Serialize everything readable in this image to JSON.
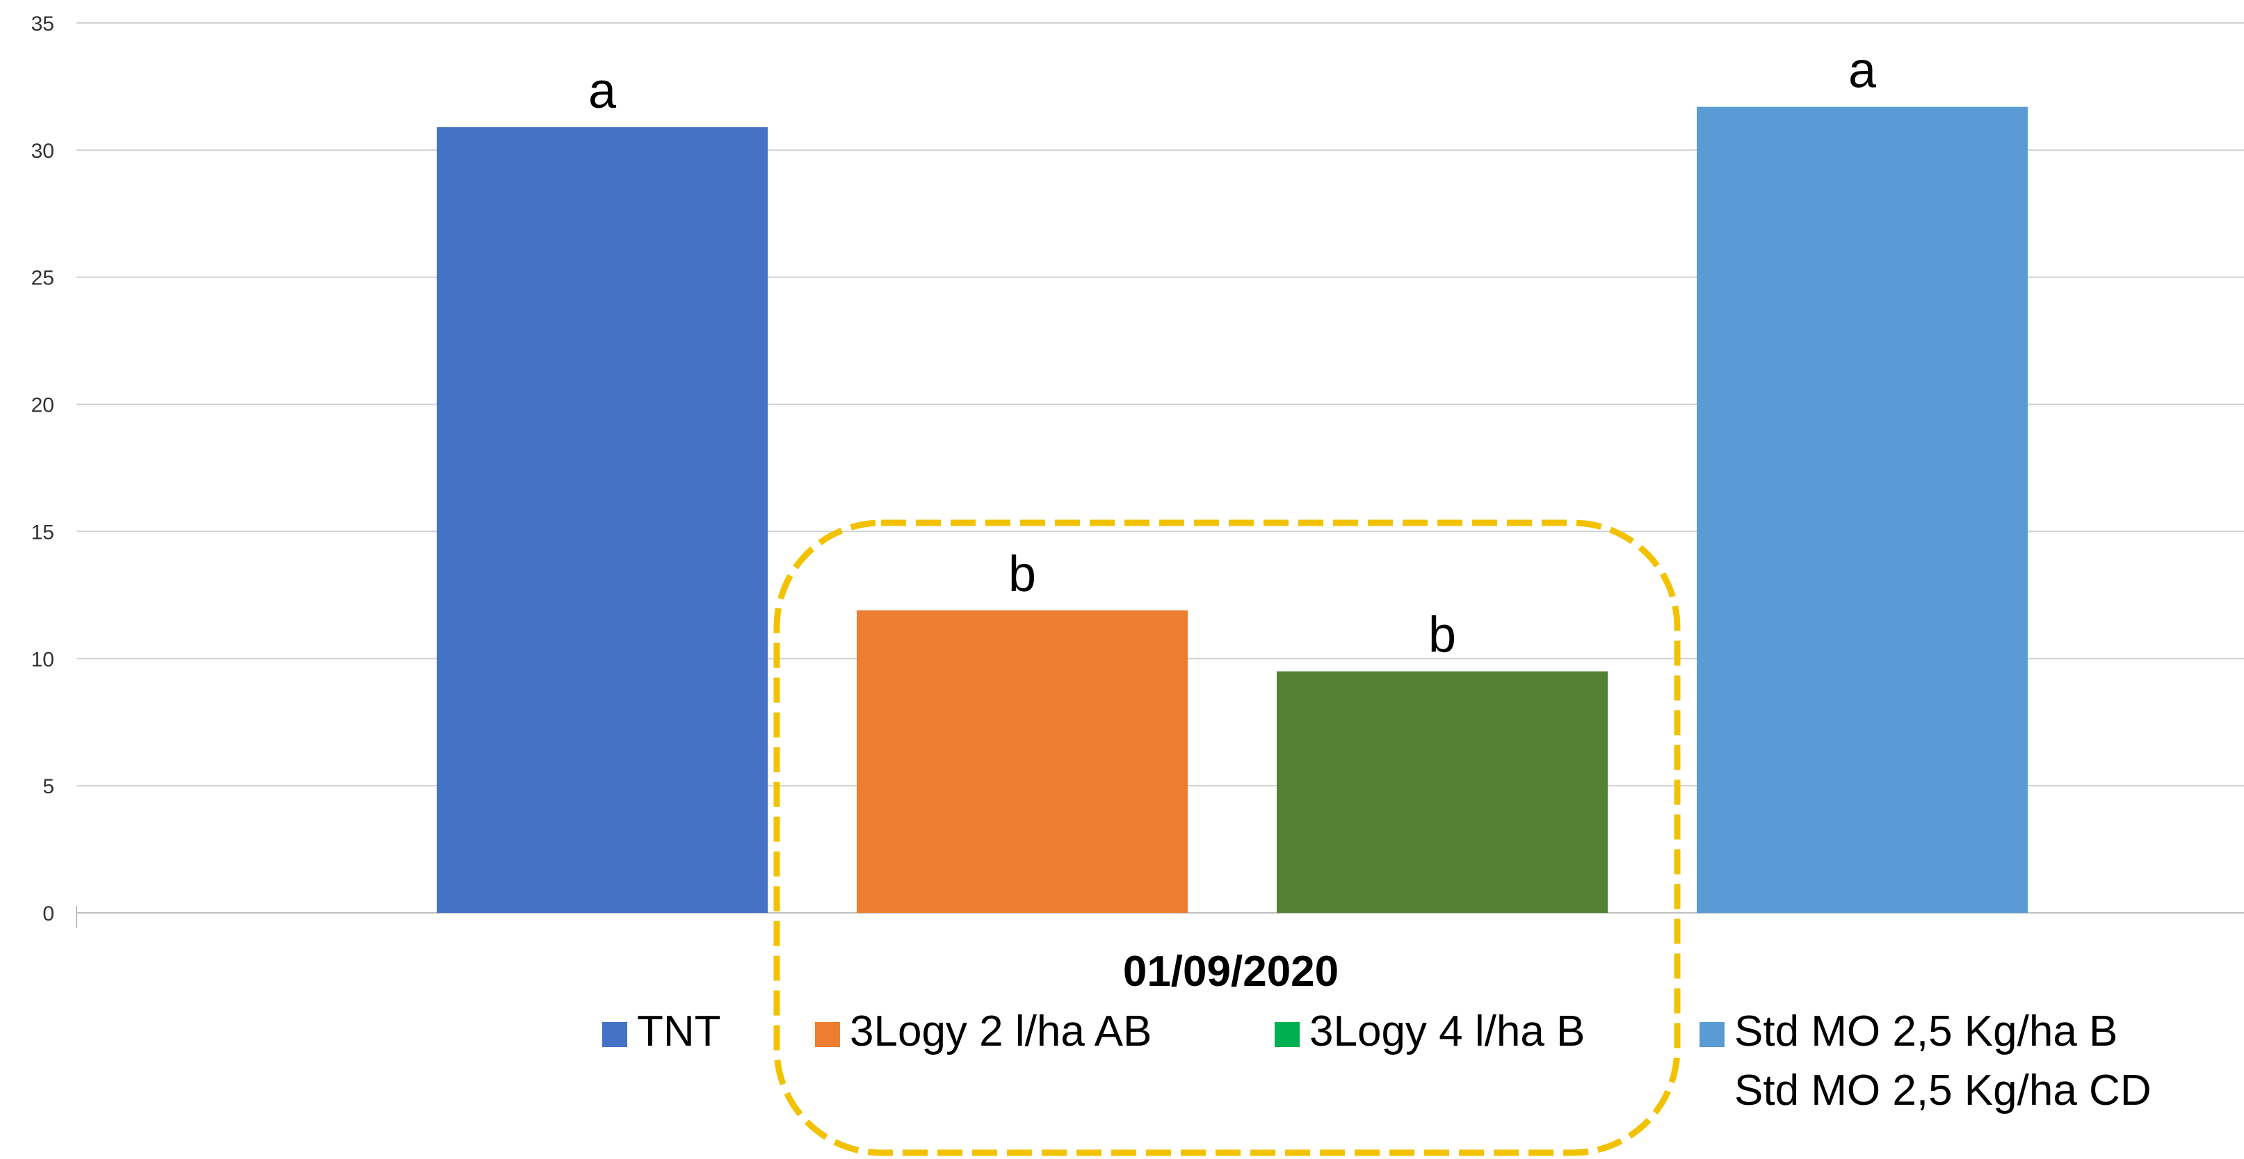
{
  "chart_data": {
    "type": "bar",
    "categories": [
      "01/09/2020"
    ],
    "series": [
      {
        "name": "TNT",
        "values": [
          30.9
        ],
        "color": "#4472C4",
        "significance": "a"
      },
      {
        "name": "3Logy 2 l/ha AB",
        "values": [
          11.9
        ],
        "color": "#ED7D31",
        "significance": "b"
      },
      {
        "name": "3Logy 4 l/ha B",
        "values": [
          9.5
        ],
        "color": "#548235",
        "significance": "b"
      },
      {
        "name": "Std MO 2,5 Kg/ha B",
        "values": [
          31.7
        ],
        "color": "#5B9BD5",
        "significance": "a"
      }
    ],
    "legend_extra": "Std MO 2,5 Kg/ha CD",
    "legend_marker_colors": [
      "#4472C4",
      "#ED7D31",
      "#00B050",
      "#5B9BD5"
    ],
    "ylim": [
      0,
      35
    ],
    "yticks": [
      "0",
      "5",
      "10",
      "15",
      "20",
      "25",
      "30",
      "35"
    ],
    "grid": true,
    "legend_position": "bottom",
    "highlight_color": "#F2C200"
  }
}
